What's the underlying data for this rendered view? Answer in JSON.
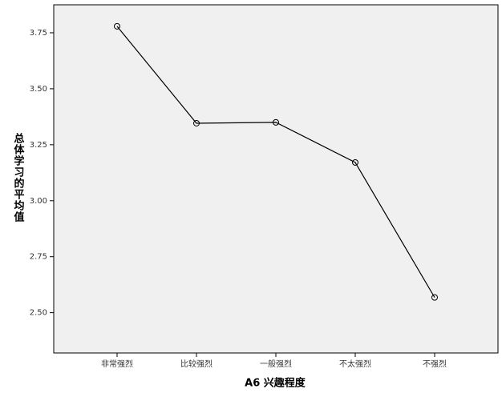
{
  "chart_data": {
    "type": "line",
    "x_label": "A6 兴趣程度",
    "y_label": "总体学习的平均值",
    "categories": [
      "非常强烈",
      "比较强烈",
      "一般强烈",
      "不太强烈",
      "不强烈"
    ],
    "values": [
      3.779,
      3.346,
      3.35,
      3.171,
      2.568
    ],
    "color": "#000000",
    "ylim": [
      2.32,
      3.875
    ],
    "yticks": [
      {
        "value": 2.5,
        "label": "2.50"
      },
      2.75,
      {
        "value": 3,
        "label": "3.00"
      },
      3.25,
      {
        "value": 3.5,
        "label": "3.50"
      },
      3.75
    ]
  }
}
